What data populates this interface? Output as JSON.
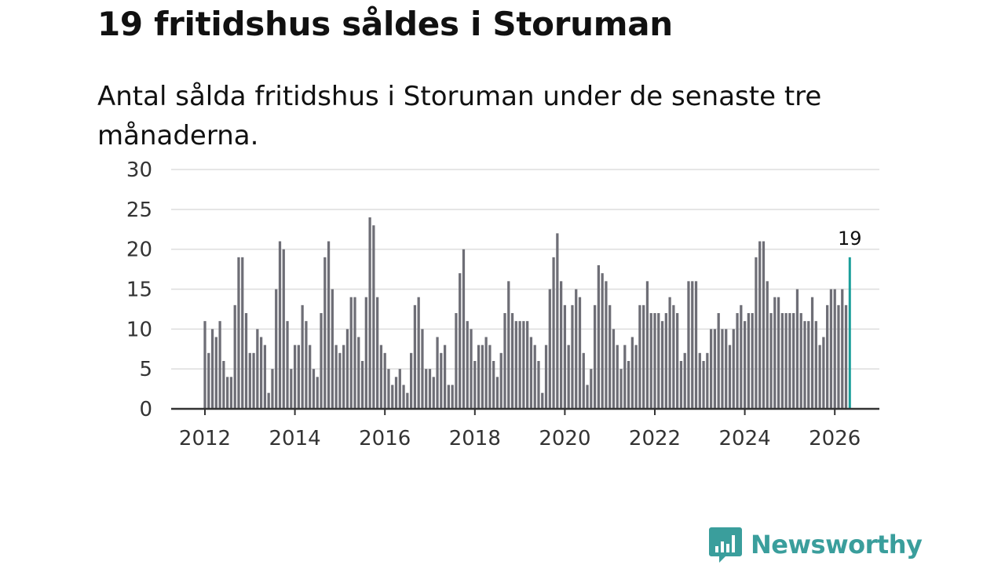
{
  "title": "19 fritidshus såldes i Storuman",
  "subtitle": "Antal sålda fritidshus i Storuman under de senaste tre månaderna.",
  "brand": {
    "name": "Newsworthy",
    "color": "#3a9e9c",
    "icon": "newsworthy-logo-icon"
  },
  "colors": {
    "bar": "#6e6e76",
    "highlight": "#1a9e9a",
    "grid": "#dddddd",
    "axis": "#333333"
  },
  "chart_data": {
    "type": "bar",
    "title": "19 fritidshus såldes i Storuman",
    "xlabel": "",
    "ylabel": "",
    "ylim": [
      0,
      30
    ],
    "yticks": [
      0,
      5,
      10,
      15,
      20,
      25,
      30
    ],
    "xticks": [
      "2012",
      "2014",
      "2016",
      "2018",
      "2020",
      "2022",
      "2024",
      "2026"
    ],
    "x_start": "2012-01",
    "x_end": "2026-03",
    "highlight_label": "19",
    "values": [
      11,
      7,
      10,
      9,
      11,
      6,
      4,
      4,
      13,
      19,
      19,
      12,
      7,
      7,
      10,
      9,
      8,
      2,
      5,
      15,
      21,
      20,
      11,
      5,
      8,
      8,
      13,
      11,
      8,
      5,
      4,
      12,
      19,
      21,
      15,
      8,
      7,
      8,
      10,
      14,
      14,
      9,
      6,
      14,
      24,
      23,
      14,
      8,
      7,
      5,
      3,
      4,
      5,
      3,
      2,
      7,
      13,
      14,
      10,
      5,
      5,
      4,
      9,
      7,
      8,
      3,
      3,
      12,
      17,
      20,
      11,
      10,
      6,
      8,
      8,
      9,
      8,
      6,
      4,
      7,
      12,
      16,
      12,
      11,
      11,
      11,
      11,
      9,
      8,
      6,
      2,
      8,
      15,
      19,
      22,
      16,
      13,
      8,
      13,
      15,
      14,
      7,
      3,
      5,
      13,
      18,
      17,
      16,
      13,
      10,
      8,
      5,
      8,
      6,
      9,
      8,
      13,
      13,
      16,
      12,
      12,
      12,
      11,
      12,
      14,
      13,
      12,
      6,
      7,
      16,
      16,
      16,
      7,
      6,
      7,
      10,
      10,
      12,
      10,
      10,
      8,
      10,
      12,
      13,
      11,
      12,
      12,
      19,
      21,
      21,
      16,
      12,
      14,
      14,
      12,
      12,
      12,
      12,
      15,
      12,
      11,
      11,
      14,
      11,
      8,
      9,
      13,
      15,
      15,
      13,
      15,
      13,
      19
    ]
  }
}
